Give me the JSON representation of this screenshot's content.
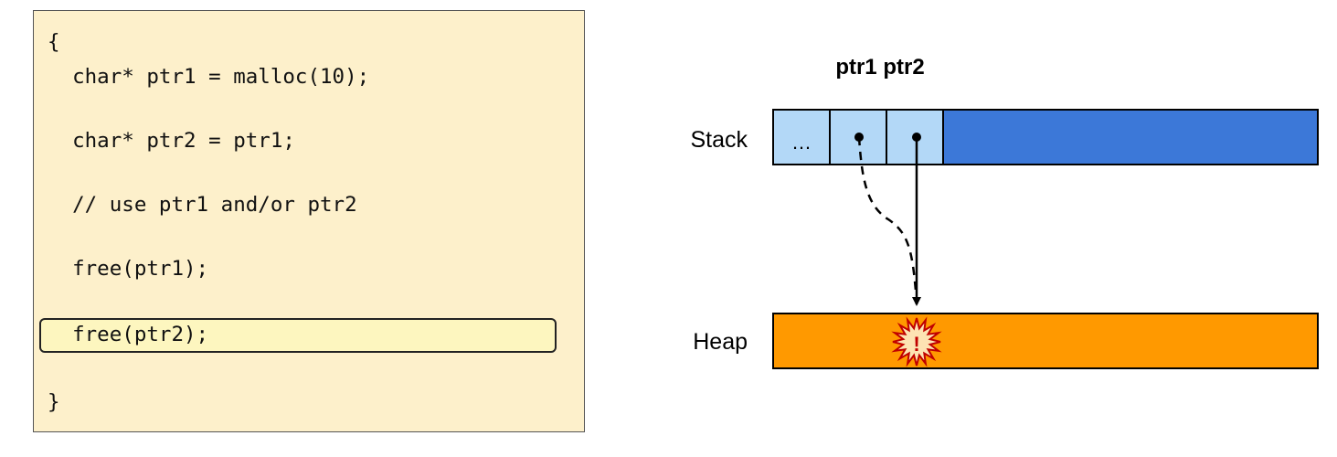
{
  "code": {
    "lines": [
      "{",
      "  char* ptr1 = malloc(10);",
      "  char* ptr2 = ptr1;",
      "  // use ptr1 and/or ptr2",
      "  free(ptr1);",
      "  free(ptr2);",
      "}"
    ],
    "highlighted_line": 5
  },
  "diagram": {
    "pointer_header": "ptr1 ptr2",
    "stack_label": "Stack",
    "heap_label": "Heap",
    "ellipsis": "…",
    "warning_symbol": "!",
    "colors": {
      "code_bg": "#fdf0cb",
      "highlight_bg": "#fdf6bf",
      "stack_cell": "#b3d8f7",
      "stack_fill": "#3c78d8",
      "heap_fill": "#ff9900",
      "warning": "#c00000"
    }
  }
}
